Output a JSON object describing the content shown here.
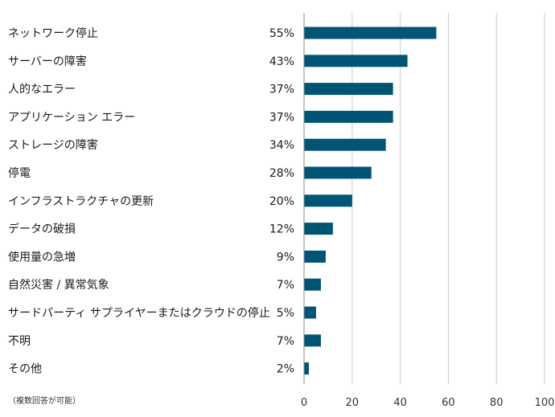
{
  "chart_data": {
    "type": "bar",
    "orientation": "horizontal",
    "categories": [
      "ネットワーク停止",
      "サーバーの障害",
      "人的なエラー",
      "アプリケーション エラー",
      "ストレージの障害",
      "停電",
      "インフラストラクチャの更新",
      "データの破損",
      "使用量の急増",
      "自然災害 / 異常気象",
      "サードパーティ サプライヤーまたはクラウドの停止",
      "不明",
      "その他"
    ],
    "values": [
      55,
      43,
      37,
      37,
      34,
      28,
      20,
      12,
      9,
      7,
      5,
      7,
      2
    ],
    "value_labels": [
      "55%",
      "43%",
      "37%",
      "37%",
      "34%",
      "28%",
      "20%",
      "12%",
      "9%",
      "7%",
      "5%",
      "7%",
      "2%"
    ],
    "xlim": [
      0,
      100
    ],
    "xticks": [
      0,
      20,
      40,
      60,
      80,
      100
    ],
    "xtick_labels": [
      "0",
      "20",
      "40",
      "60",
      "80",
      "100"
    ],
    "bar_color": "#005574",
    "grid": true,
    "title": "",
    "xlabel": "",
    "ylabel": ""
  },
  "footnote": "（複数回答が可能）"
}
